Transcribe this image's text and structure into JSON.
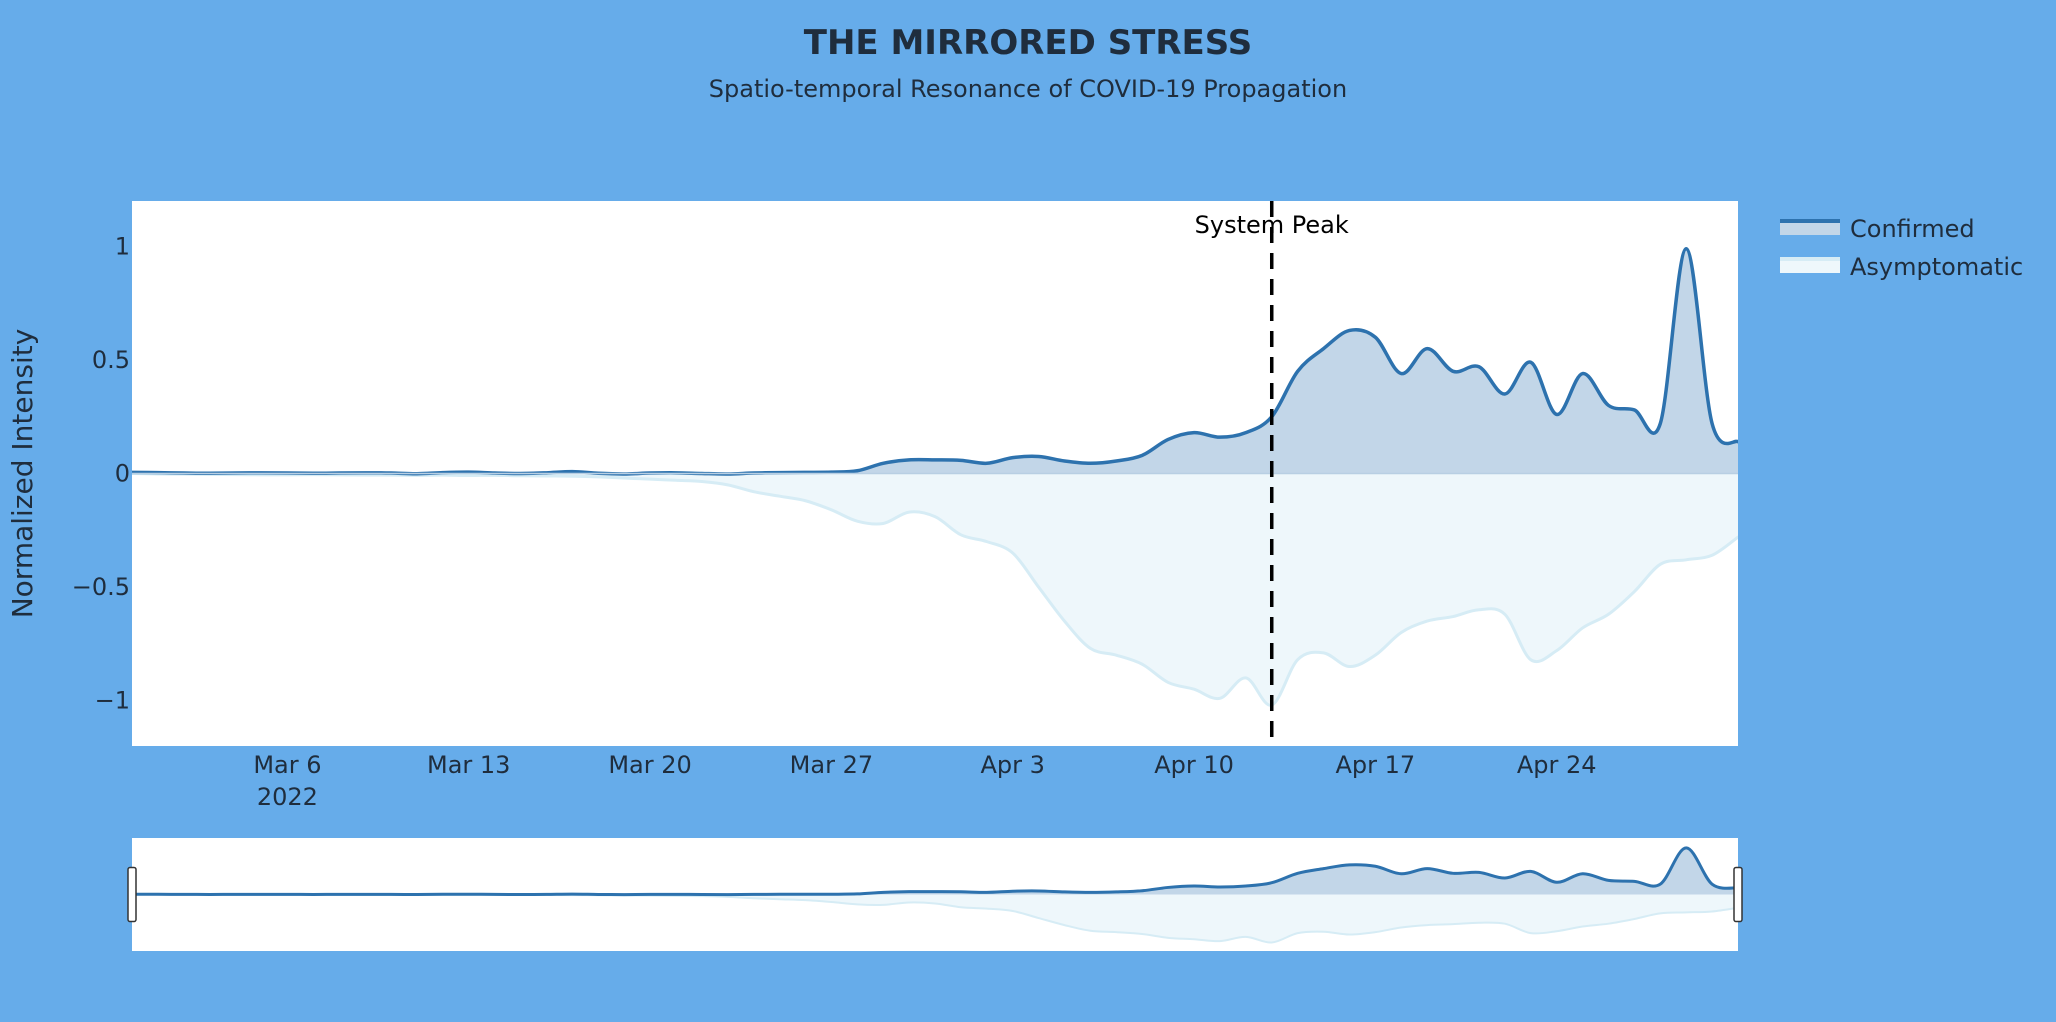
{
  "chart_data": {
    "type": "area",
    "title": "THE MIRRORED STRESS",
    "subtitle": "Spatio-temporal Resonance of COVID-19 Propagation",
    "xlabel": "",
    "ylabel": "Normalized Intensity",
    "x_range": [
      "2022-02-28",
      "2022-05-01"
    ],
    "ylim": [
      -1.2,
      1.2
    ],
    "x_ticks": [
      {
        "date": "2022-03-06",
        "label": "Mar 6",
        "sublabel": "2022"
      },
      {
        "date": "2022-03-13",
        "label": "Mar 13"
      },
      {
        "date": "2022-03-20",
        "label": "Mar 20"
      },
      {
        "date": "2022-03-27",
        "label": "Mar 27"
      },
      {
        "date": "2022-04-03",
        "label": "Apr 3"
      },
      {
        "date": "2022-04-10",
        "label": "Apr 10"
      },
      {
        "date": "2022-04-17",
        "label": "Apr 17"
      },
      {
        "date": "2022-04-24",
        "label": "Apr 24"
      }
    ],
    "y_ticks": [
      {
        "value": 1,
        "label": "1"
      },
      {
        "value": 0.5,
        "label": "0.5"
      },
      {
        "value": 0,
        "label": "0"
      },
      {
        "value": -0.5,
        "label": "−0.5"
      },
      {
        "value": -1,
        "label": "−1"
      }
    ],
    "grid": false,
    "legend_position": "right",
    "annotation": {
      "date": "2022-04-13",
      "label": "System Peak"
    },
    "series": [
      {
        "name": "Confirmed",
        "color": "#2d72ae",
        "fill": "#c2d6e8",
        "points": [
          [
            "2022-02-28",
            0.005
          ],
          [
            "2022-03-01",
            0.004
          ],
          [
            "2022-03-02",
            0.002
          ],
          [
            "2022-03-03",
            0.001
          ],
          [
            "2022-03-04",
            0.002
          ],
          [
            "2022-03-05",
            0.003
          ],
          [
            "2022-03-06",
            0.002
          ],
          [
            "2022-03-07",
            0.001
          ],
          [
            "2022-03-08",
            0.002
          ],
          [
            "2022-03-09",
            0.003
          ],
          [
            "2022-03-10",
            0.002
          ],
          [
            "2022-03-11",
            -0.001
          ],
          [
            "2022-03-12",
            0.004
          ],
          [
            "2022-03-13",
            0.006
          ],
          [
            "2022-03-14",
            0.002
          ],
          [
            "2022-03-15",
            0.0
          ],
          [
            "2022-03-16",
            0.003
          ],
          [
            "2022-03-17",
            0.008
          ],
          [
            "2022-03-18",
            0.001
          ],
          [
            "2022-03-19",
            -0.002
          ],
          [
            "2022-03-20",
            0.002
          ],
          [
            "2022-03-21",
            0.003
          ],
          [
            "2022-03-22",
            0.0
          ],
          [
            "2022-03-23",
            -0.002
          ],
          [
            "2022-03-24",
            0.002
          ],
          [
            "2022-03-25",
            0.004
          ],
          [
            "2022-03-26",
            0.005
          ],
          [
            "2022-03-27",
            0.006
          ],
          [
            "2022-03-28",
            0.012
          ],
          [
            "2022-03-29",
            0.045
          ],
          [
            "2022-03-30",
            0.06
          ],
          [
            "2022-03-31",
            0.06
          ],
          [
            "2022-04-01",
            0.058
          ],
          [
            "2022-04-02",
            0.045
          ],
          [
            "2022-04-03",
            0.07
          ],
          [
            "2022-04-04",
            0.075
          ],
          [
            "2022-04-05",
            0.055
          ],
          [
            "2022-04-06",
            0.045
          ],
          [
            "2022-04-07",
            0.055
          ],
          [
            "2022-04-08",
            0.08
          ],
          [
            "2022-04-09",
            0.15
          ],
          [
            "2022-04-10",
            0.18
          ],
          [
            "2022-04-11",
            0.16
          ],
          [
            "2022-04-12",
            0.18
          ],
          [
            "2022-04-13",
            0.25
          ],
          [
            "2022-04-14",
            0.45
          ],
          [
            "2022-04-15",
            0.55
          ],
          [
            "2022-04-16",
            0.63
          ],
          [
            "2022-04-17",
            0.6
          ],
          [
            "2022-04-18",
            0.44
          ],
          [
            "2022-04-19",
            0.55
          ],
          [
            "2022-04-20",
            0.45
          ],
          [
            "2022-04-21",
            0.47
          ],
          [
            "2022-04-22",
            0.35
          ],
          [
            "2022-04-23",
            0.49
          ],
          [
            "2022-04-24",
            0.26
          ],
          [
            "2022-04-25",
            0.44
          ],
          [
            "2022-04-26",
            0.3
          ],
          [
            "2022-04-27",
            0.28
          ],
          [
            "2022-04-28",
            0.22
          ],
          [
            "2022-04-29",
            0.99
          ],
          [
            "2022-04-30",
            0.22
          ],
          [
            "2022-05-01",
            0.14
          ]
        ]
      },
      {
        "name": "Asymptomatic",
        "color": "#d6ecf5",
        "fill": "#eef7fb",
        "points": [
          [
            "2022-02-28",
            0.0
          ],
          [
            "2022-03-01",
            -0.002
          ],
          [
            "2022-03-02",
            -0.003
          ],
          [
            "2022-03-03",
            -0.004
          ],
          [
            "2022-03-04",
            -0.005
          ],
          [
            "2022-03-05",
            -0.006
          ],
          [
            "2022-03-06",
            -0.006
          ],
          [
            "2022-03-07",
            -0.005
          ],
          [
            "2022-03-08",
            -0.006
          ],
          [
            "2022-03-09",
            -0.007
          ],
          [
            "2022-03-10",
            -0.007
          ],
          [
            "2022-03-11",
            -0.008
          ],
          [
            "2022-03-12",
            -0.007
          ],
          [
            "2022-03-13",
            -0.009
          ],
          [
            "2022-03-14",
            -0.008
          ],
          [
            "2022-03-15",
            -0.01
          ],
          [
            "2022-03-16",
            -0.011
          ],
          [
            "2022-03-17",
            -0.012
          ],
          [
            "2022-03-18",
            -0.015
          ],
          [
            "2022-03-19",
            -0.02
          ],
          [
            "2022-03-20",
            -0.025
          ],
          [
            "2022-03-21",
            -0.03
          ],
          [
            "2022-03-22",
            -0.035
          ],
          [
            "2022-03-23",
            -0.05
          ],
          [
            "2022-03-24",
            -0.08
          ],
          [
            "2022-03-25",
            -0.1
          ],
          [
            "2022-03-26",
            -0.12
          ],
          [
            "2022-03-27",
            -0.16
          ],
          [
            "2022-03-28",
            -0.21
          ],
          [
            "2022-03-29",
            -0.22
          ],
          [
            "2022-03-30",
            -0.17
          ],
          [
            "2022-03-31",
            -0.19
          ],
          [
            "2022-04-01",
            -0.27
          ],
          [
            "2022-04-02",
            -0.3
          ],
          [
            "2022-04-03",
            -0.35
          ],
          [
            "2022-04-04",
            -0.5
          ],
          [
            "2022-04-05",
            -0.65
          ],
          [
            "2022-04-06",
            -0.77
          ],
          [
            "2022-04-07",
            -0.8
          ],
          [
            "2022-04-08",
            -0.84
          ],
          [
            "2022-04-09",
            -0.92
          ],
          [
            "2022-04-10",
            -0.95
          ],
          [
            "2022-04-11",
            -0.99
          ],
          [
            "2022-04-12",
            -0.9
          ],
          [
            "2022-04-13",
            -1.02
          ],
          [
            "2022-04-14",
            -0.82
          ],
          [
            "2022-04-15",
            -0.79
          ],
          [
            "2022-04-16",
            -0.85
          ],
          [
            "2022-04-17",
            -0.8
          ],
          [
            "2022-04-18",
            -0.7
          ],
          [
            "2022-04-19",
            -0.65
          ],
          [
            "2022-04-20",
            -0.63
          ],
          [
            "2022-04-21",
            -0.6
          ],
          [
            "2022-04-22",
            -0.62
          ],
          [
            "2022-04-23",
            -0.82
          ],
          [
            "2022-04-24",
            -0.78
          ],
          [
            "2022-04-25",
            -0.68
          ],
          [
            "2022-04-26",
            -0.62
          ],
          [
            "2022-04-27",
            -0.52
          ],
          [
            "2022-04-28",
            -0.4
          ],
          [
            "2022-04-29",
            -0.38
          ],
          [
            "2022-04-30",
            -0.36
          ],
          [
            "2022-05-01",
            -0.28
          ]
        ]
      }
    ]
  },
  "colors": {
    "page_background": "#66acea",
    "plot_background": "#ffffff",
    "title": "#1f2d3d",
    "annotation_line": "#000000"
  }
}
